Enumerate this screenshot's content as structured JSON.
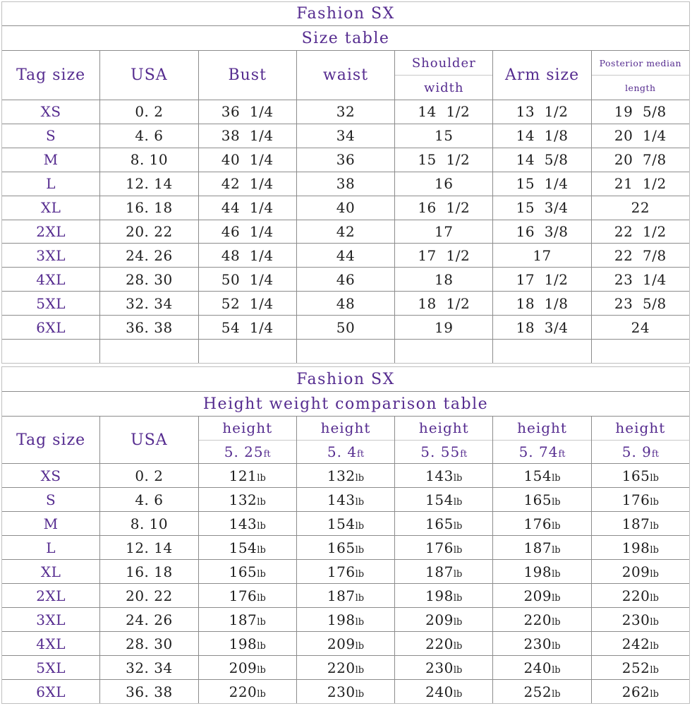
{
  "colors": {
    "heading": "#552b8f",
    "body_text": "#1d1d1d",
    "grid_line": "#8c8c8c",
    "light_line": "#c9c9c9",
    "background": "#ffffff"
  },
  "tables": [
    {
      "title": "Fashion SX",
      "subtitle": "Size table",
      "headers": [
        {
          "label": "Tag size"
        },
        {
          "label": "USA"
        },
        {
          "label": "Bust"
        },
        {
          "label": "waist"
        },
        {
          "top": "Shoulder",
          "bottom": "width"
        },
        {
          "label": "Arm size"
        },
        {
          "top": "Posterior median",
          "bottom": "length",
          "small": true
        }
      ],
      "rows": [
        {
          "tag": "XS",
          "cells": [
            "0. 2",
            "36  1/4",
            "32",
            "14  1/2",
            "13  1/2",
            "19  5/8"
          ]
        },
        {
          "tag": "S",
          "cells": [
            "4. 6",
            "38  1/4",
            "34",
            "15",
            "14  1/8",
            "20  1/4"
          ]
        },
        {
          "tag": "M",
          "cells": [
            "8. 10",
            "40  1/4",
            "36",
            "15  1/2",
            "14  5/8",
            "20  7/8"
          ]
        },
        {
          "tag": "L",
          "cells": [
            "12. 14",
            "42  1/4",
            "38",
            "16",
            "15  1/4",
            "21  1/2"
          ]
        },
        {
          "tag": "XL",
          "cells": [
            "16. 18",
            "44  1/4",
            "40",
            "16  1/2",
            "15  3/4",
            "22"
          ]
        },
        {
          "tag": "2XL",
          "cells": [
            "20. 22",
            "46  1/4",
            "42",
            "17",
            "16  3/8",
            "22  1/2"
          ]
        },
        {
          "tag": "3XL",
          "cells": [
            "24. 26",
            "48  1/4",
            "44",
            "17  1/2",
            "17",
            "22  7/8"
          ]
        },
        {
          "tag": "4XL",
          "cells": [
            "28. 30",
            "50  1/4",
            "46",
            "18",
            "17  1/2",
            "23  1/4"
          ]
        },
        {
          "tag": "5XL",
          "cells": [
            "32. 34",
            "52  1/4",
            "48",
            "18  1/2",
            "18  1/8",
            "23  5/8"
          ]
        },
        {
          "tag": "6XL",
          "cells": [
            "36. 38",
            "54  1/4",
            "50",
            "19",
            "18  3/4",
            "24"
          ]
        }
      ],
      "empty_row": true
    },
    {
      "title": "Fashion SX",
      "subtitle": "Height weight comparison table",
      "headers": [
        {
          "label": "Tag size"
        },
        {
          "label": "USA"
        },
        {
          "top": "height",
          "bottom": "5. 25",
          "unit": "ft"
        },
        {
          "top": "height",
          "bottom": "5. 4",
          "unit": "ft"
        },
        {
          "top": "height",
          "bottom": "5. 55",
          "unit": "ft"
        },
        {
          "top": "height",
          "bottom": "5. 74",
          "unit": "ft"
        },
        {
          "top": "height",
          "bottom": "5. 9",
          "unit": "ft"
        }
      ],
      "rows": [
        {
          "tag": "XS",
          "cells": [
            "0. 2",
            {
              "v": "121",
              "u": "lb"
            },
            {
              "v": "132",
              "u": "lb"
            },
            {
              "v": "143",
              "u": "lb"
            },
            {
              "v": "154",
              "u": "lb"
            },
            {
              "v": "165",
              "u": "lb"
            }
          ]
        },
        {
          "tag": "S",
          "cells": [
            "4. 6",
            {
              "v": "132",
              "u": "lb"
            },
            {
              "v": "143",
              "u": "lb"
            },
            {
              "v": "154",
              "u": "lb"
            },
            {
              "v": "165",
              "u": "lb"
            },
            {
              "v": "176",
              "u": "lb"
            }
          ]
        },
        {
          "tag": "M",
          "cells": [
            "8. 10",
            {
              "v": "143",
              "u": "lb"
            },
            {
              "v": "154",
              "u": "lb"
            },
            {
              "v": "165",
              "u": "lb"
            },
            {
              "v": "176",
              "u": "lb"
            },
            {
              "v": "187",
              "u": "lb"
            }
          ]
        },
        {
          "tag": "L",
          "cells": [
            "12. 14",
            {
              "v": "154",
              "u": "lb"
            },
            {
              "v": "165",
              "u": "lb"
            },
            {
              "v": "176",
              "u": "lb"
            },
            {
              "v": "187",
              "u": "lb"
            },
            {
              "v": "198",
              "u": "lb"
            }
          ]
        },
        {
          "tag": "XL",
          "cells": [
            "16. 18",
            {
              "v": "165",
              "u": "lb"
            },
            {
              "v": "176",
              "u": "lb"
            },
            {
              "v": "187",
              "u": "lb"
            },
            {
              "v": "198",
              "u": "lb"
            },
            {
              "v": "209",
              "u": "lb"
            }
          ]
        },
        {
          "tag": "2XL",
          "cells": [
            "20. 22",
            {
              "v": "176",
              "u": "lb"
            },
            {
              "v": "187",
              "u": "lb"
            },
            {
              "v": "198",
              "u": "lb"
            },
            {
              "v": "209",
              "u": "lb"
            },
            {
              "v": "220",
              "u": "lb"
            }
          ]
        },
        {
          "tag": "3XL",
          "cells": [
            "24. 26",
            {
              "v": "187",
              "u": "lb"
            },
            {
              "v": "198",
              "u": "lb"
            },
            {
              "v": "209",
              "u": "lb"
            },
            {
              "v": "220",
              "u": "lb"
            },
            {
              "v": "230",
              "u": "lb"
            }
          ]
        },
        {
          "tag": "4XL",
          "cells": [
            "28. 30",
            {
              "v": "198",
              "u": "lb"
            },
            {
              "v": "209",
              "u": "lb"
            },
            {
              "v": "220",
              "u": "lb"
            },
            {
              "v": "230",
              "u": "lb"
            },
            {
              "v": "242",
              "u": "lb"
            }
          ]
        },
        {
          "tag": "5XL",
          "cells": [
            "32. 34",
            {
              "v": "209",
              "u": "lb"
            },
            {
              "v": "220",
              "u": "lb"
            },
            {
              "v": "230",
              "u": "lb"
            },
            {
              "v": "240",
              "u": "lb"
            },
            {
              "v": "252",
              "u": "lb"
            }
          ]
        },
        {
          "tag": "6XL",
          "cells": [
            "36. 38",
            {
              "v": "220",
              "u": "lb"
            },
            {
              "v": "230",
              "u": "lb"
            },
            {
              "v": "240",
              "u": "lb"
            },
            {
              "v": "252",
              "u": "lb"
            },
            {
              "v": "262",
              "u": "lb"
            }
          ]
        }
      ],
      "empty_row": false
    }
  ]
}
